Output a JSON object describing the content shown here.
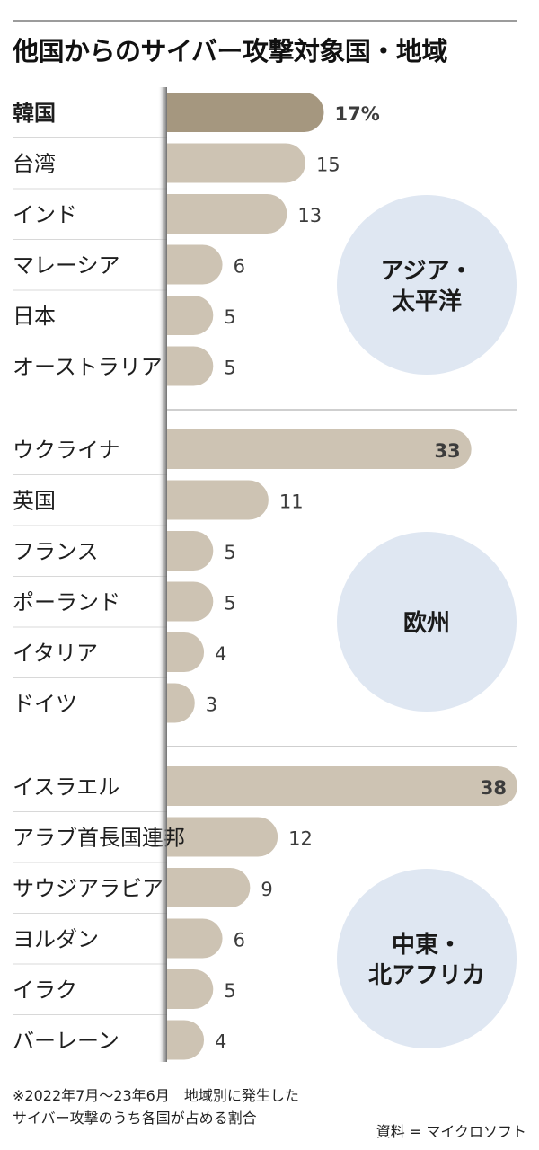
{
  "title": "他国からのサイバー攻撃対象国・地域",
  "note_line1": "※2022年7月～23年6月　地域別に発生した",
  "note_line2": "サイバー攻撃のうち各国が占める割合",
  "source": "資料 = マイクロソフト",
  "colors": {
    "bar": "#cdc3b3",
    "bar_highlight": "#a5977f",
    "bar_label_inside": "#ffffff",
    "globe_ocean": "#dfe7f2",
    "globe_land": "#b8cbe3",
    "axis_shadow": "#8a8a8a",
    "separator": "#d8d8d8"
  },
  "chart_data": {
    "type": "bar",
    "orientation": "horizontal",
    "unit": "%",
    "xlim": [
      0,
      38
    ],
    "groups": [
      {
        "region": "アジア・太平洋",
        "region_lines": [
          "アジア・",
          "太平洋"
        ],
        "icon": "globe-asia-pacific",
        "categories": [
          "韓国",
          "台湾",
          "インド",
          "マレーシア",
          "日本",
          "オーストラリア"
        ],
        "values": [
          17,
          15,
          13,
          6,
          5,
          5
        ],
        "value_labels": [
          "17%",
          "15",
          "13",
          "6",
          "5",
          "5"
        ]
      },
      {
        "region": "欧州",
        "region_lines": [
          "欧州"
        ],
        "icon": "globe-europe",
        "categories": [
          "ウクライナ",
          "英国",
          "フランス",
          "ポーランド",
          "イタリア",
          "ドイツ"
        ],
        "values": [
          33,
          11,
          5,
          5,
          4,
          3
        ],
        "value_labels": [
          "33",
          "11",
          "5",
          "5",
          "4",
          "3"
        ]
      },
      {
        "region": "中東・北アフリカ",
        "region_lines": [
          "中東・",
          "北アフリカ"
        ],
        "icon": "globe-middle-east-north-africa",
        "categories": [
          "イスラエル",
          "アラブ首長国連邦",
          "サウジアラビア",
          "ヨルダン",
          "イラク",
          "バーレーン"
        ],
        "values": [
          38,
          12,
          9,
          6,
          5,
          4
        ],
        "value_labels": [
          "38",
          "12",
          "9",
          "6",
          "5",
          "4"
        ]
      }
    ]
  }
}
